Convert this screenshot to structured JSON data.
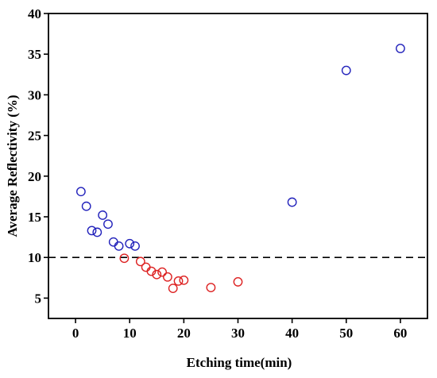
{
  "chart_data": {
    "type": "scatter",
    "title": "",
    "xlabel": "Etching time(min)",
    "ylabel": "Average Reflectivity (%)",
    "xlim": [
      -5,
      65
    ],
    "ylim": [
      2.5,
      40
    ],
    "xticks": [
      0,
      10,
      20,
      30,
      40,
      50,
      60
    ],
    "yticks": [
      5,
      10,
      15,
      20,
      25,
      30,
      35,
      40
    ],
    "reference_line": {
      "y": 10,
      "style": "dashed",
      "color": "#000000"
    },
    "grid": false,
    "legend": "none",
    "series": [
      {
        "color": "#2222bb",
        "marker": "open-circle",
        "x": [
          1,
          2,
          3,
          4,
          5,
          6,
          7,
          8,
          10,
          11,
          40,
          50,
          60
        ],
        "y": [
          18.1,
          16.3,
          13.3,
          13.1,
          15.2,
          14.1,
          11.9,
          11.4,
          11.7,
          11.4,
          16.8,
          33.0,
          35.7
        ]
      },
      {
        "color": "#dd2222",
        "marker": "open-circle",
        "x": [
          9,
          12,
          13,
          14,
          15,
          16,
          17,
          18,
          19,
          20,
          25,
          30
        ],
        "y": [
          9.9,
          9.5,
          8.8,
          8.3,
          7.9,
          8.2,
          7.6,
          6.2,
          7.1,
          7.2,
          6.3,
          7.0
        ]
      }
    ]
  }
}
